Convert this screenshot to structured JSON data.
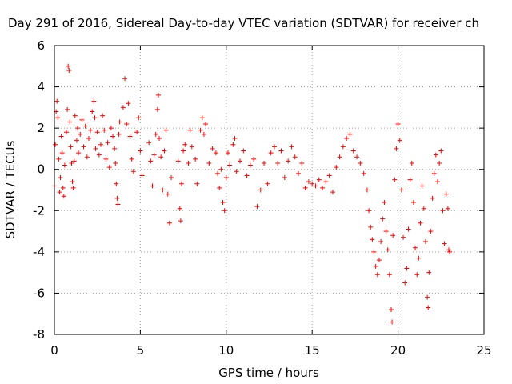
{
  "chart_data": {
    "type": "scatter",
    "title": "Day 291 of 2016, Sidereal Day-to-day VTEC variation (SDTVAR) for receiver ch",
    "xlabel": "GPS time / hours",
    "ylabel": "SDTVAR / TECUs",
    "xlim": [
      0,
      25
    ],
    "ylim": [
      -8,
      6
    ],
    "xticks": [
      "0",
      "5",
      "10",
      "15",
      "20",
      "25"
    ],
    "yticks": [
      "6",
      "4",
      "2",
      "0",
      "-2",
      "-4",
      "-6",
      "-8"
    ],
    "grid": true,
    "marker": "plus",
    "color": "#ff0000",
    "series": [
      {
        "name": "SDTVAR",
        "points": [
          [
            0.0,
            -0.8
          ],
          [
            0.05,
            1.2
          ],
          [
            0.1,
            2.8
          ],
          [
            0.15,
            3.3
          ],
          [
            0.2,
            2.5
          ],
          [
            0.25,
            0.5
          ],
          [
            0.3,
            -1.1
          ],
          [
            0.35,
            -0.4
          ],
          [
            0.4,
            1.6
          ],
          [
            0.45,
            0.8
          ],
          [
            0.5,
            -0.9
          ],
          [
            0.55,
            -1.3
          ],
          [
            0.6,
            0.2
          ],
          [
            0.7,
            1.8
          ],
          [
            0.75,
            2.9
          ],
          [
            0.8,
            5.0
          ],
          [
            0.85,
            4.8
          ],
          [
            0.9,
            2.3
          ],
          [
            0.95,
            1.1
          ],
          [
            1.0,
            0.3
          ],
          [
            1.05,
            -0.6
          ],
          [
            1.1,
            -0.9
          ],
          [
            1.15,
            0.4
          ],
          [
            1.2,
            2.6
          ],
          [
            1.3,
            1.4
          ],
          [
            1.35,
            2.0
          ],
          [
            1.4,
            0.8
          ],
          [
            1.5,
            1.7
          ],
          [
            1.6,
            2.4
          ],
          [
            1.7,
            1.1
          ],
          [
            1.8,
            2.1
          ],
          [
            1.9,
            0.6
          ],
          [
            2.0,
            1.5
          ],
          [
            2.1,
            1.9
          ],
          [
            2.2,
            2.8
          ],
          [
            2.3,
            3.3
          ],
          [
            2.35,
            2.5
          ],
          [
            2.4,
            1.0
          ],
          [
            2.5,
            1.8
          ],
          [
            2.6,
            0.7
          ],
          [
            2.7,
            1.2
          ],
          [
            2.8,
            2.6
          ],
          [
            2.9,
            1.9
          ],
          [
            3.0,
            0.5
          ],
          [
            3.1,
            1.3
          ],
          [
            3.2,
            0.1
          ],
          [
            3.3,
            2.0
          ],
          [
            3.4,
            1.6
          ],
          [
            3.5,
            1.0
          ],
          [
            3.55,
            0.3
          ],
          [
            3.6,
            -0.7
          ],
          [
            3.65,
            -1.4
          ],
          [
            3.7,
            -1.7
          ],
          [
            3.75,
            1.7
          ],
          [
            3.8,
            2.3
          ],
          [
            4.0,
            3.0
          ],
          [
            4.1,
            4.4
          ],
          [
            4.2,
            2.2
          ],
          [
            4.3,
            3.2
          ],
          [
            4.4,
            1.6
          ],
          [
            4.5,
            0.5
          ],
          [
            4.6,
            -0.1
          ],
          [
            4.8,
            1.8
          ],
          [
            4.9,
            2.5
          ],
          [
            5.0,
            0.9
          ],
          [
            5.1,
            -0.3
          ],
          [
            5.5,
            1.3
          ],
          [
            5.6,
            0.4
          ],
          [
            5.7,
            -0.8
          ],
          [
            5.8,
            0.7
          ],
          [
            5.9,
            1.7
          ],
          [
            6.0,
            2.9
          ],
          [
            6.05,
            3.6
          ],
          [
            6.1,
            1.5
          ],
          [
            6.2,
            0.6
          ],
          [
            6.3,
            -1.0
          ],
          [
            6.4,
            0.9
          ],
          [
            6.5,
            1.9
          ],
          [
            6.6,
            -1.2
          ],
          [
            6.7,
            -2.6
          ],
          [
            6.8,
            -0.4
          ],
          [
            7.2,
            0.4
          ],
          [
            7.3,
            -1.9
          ],
          [
            7.35,
            -2.5
          ],
          [
            7.4,
            -0.7
          ],
          [
            7.5,
            0.9
          ],
          [
            7.6,
            1.2
          ],
          [
            7.8,
            0.3
          ],
          [
            7.9,
            1.9
          ],
          [
            8.0,
            1.1
          ],
          [
            8.2,
            0.5
          ],
          [
            8.3,
            -0.7
          ],
          [
            8.5,
            1.9
          ],
          [
            8.6,
            2.5
          ],
          [
            8.7,
            1.7
          ],
          [
            8.8,
            2.2
          ],
          [
            9.0,
            0.3
          ],
          [
            9.2,
            1.0
          ],
          [
            9.4,
            0.8
          ],
          [
            9.5,
            -0.2
          ],
          [
            9.6,
            -0.9
          ],
          [
            9.7,
            0.0
          ],
          [
            9.8,
            -1.6
          ],
          [
            9.9,
            -2.0
          ],
          [
            10.0,
            -0.4
          ],
          [
            10.1,
            0.8
          ],
          [
            10.2,
            0.2
          ],
          [
            10.4,
            1.2
          ],
          [
            10.5,
            1.5
          ],
          [
            10.6,
            -0.1
          ],
          [
            10.8,
            0.4
          ],
          [
            11.0,
            0.9
          ],
          [
            11.2,
            -0.3
          ],
          [
            11.4,
            0.2
          ],
          [
            11.6,
            0.5
          ],
          [
            11.8,
            -1.8
          ],
          [
            12.0,
            -1.0
          ],
          [
            12.2,
            0.3
          ],
          [
            12.4,
            -0.7
          ],
          [
            12.6,
            0.8
          ],
          [
            12.8,
            1.1
          ],
          [
            13.0,
            0.3
          ],
          [
            13.2,
            0.9
          ],
          [
            13.4,
            -0.4
          ],
          [
            13.6,
            0.4
          ],
          [
            13.8,
            1.1
          ],
          [
            14.0,
            0.6
          ],
          [
            14.2,
            -0.2
          ],
          [
            14.4,
            0.3
          ],
          [
            14.6,
            -0.9
          ],
          [
            14.8,
            -0.6
          ],
          [
            15.0,
            -0.7
          ],
          [
            15.2,
            -0.8
          ],
          [
            15.4,
            -0.5
          ],
          [
            15.6,
            -0.9
          ],
          [
            15.8,
            -0.6
          ],
          [
            16.0,
            -0.3
          ],
          [
            16.2,
            -1.1
          ],
          [
            16.4,
            0.1
          ],
          [
            16.6,
            0.6
          ],
          [
            16.8,
            1.1
          ],
          [
            17.0,
            1.5
          ],
          [
            17.2,
            1.7
          ],
          [
            17.4,
            0.9
          ],
          [
            17.6,
            0.6
          ],
          [
            17.8,
            0.3
          ],
          [
            18.0,
            -0.2
          ],
          [
            18.2,
            -1.0
          ],
          [
            18.3,
            -2.0
          ],
          [
            18.4,
            -2.8
          ],
          [
            18.5,
            -3.4
          ],
          [
            18.6,
            -4.0
          ],
          [
            18.7,
            -4.7
          ],
          [
            18.8,
            -5.1
          ],
          [
            18.9,
            -4.4
          ],
          [
            19.0,
            -3.5
          ],
          [
            19.1,
            -2.4
          ],
          [
            19.2,
            -1.6
          ],
          [
            19.3,
            -3.0
          ],
          [
            19.4,
            -3.9
          ],
          [
            19.5,
            -5.1
          ],
          [
            19.6,
            -6.8
          ],
          [
            19.65,
            -7.4
          ],
          [
            19.7,
            -3.2
          ],
          [
            19.8,
            -0.5
          ],
          [
            19.9,
            1.0
          ],
          [
            20.0,
            2.2
          ],
          [
            20.1,
            1.4
          ],
          [
            20.2,
            -1.0
          ],
          [
            20.3,
            -3.3
          ],
          [
            20.4,
            -5.5
          ],
          [
            20.5,
            -4.8
          ],
          [
            20.6,
            -2.9
          ],
          [
            20.7,
            -0.5
          ],
          [
            20.8,
            0.3
          ],
          [
            20.9,
            -1.6
          ],
          [
            21.0,
            -3.8
          ],
          [
            21.1,
            -5.1
          ],
          [
            21.2,
            -4.3
          ],
          [
            21.3,
            -2.6
          ],
          [
            21.4,
            -0.8
          ],
          [
            21.5,
            -1.9
          ],
          [
            21.6,
            -3.5
          ],
          [
            21.7,
            -6.2
          ],
          [
            21.75,
            -6.7
          ],
          [
            21.8,
            -5.0
          ],
          [
            21.9,
            -3.0
          ],
          [
            22.0,
            -1.4
          ],
          [
            22.1,
            -0.2
          ],
          [
            22.2,
            0.7
          ],
          [
            22.3,
            -0.6
          ],
          [
            22.4,
            0.3
          ],
          [
            22.5,
            0.9
          ],
          [
            22.6,
            -2.0
          ],
          [
            22.7,
            -3.6
          ],
          [
            22.8,
            -1.2
          ],
          [
            22.9,
            -1.9
          ],
          [
            22.95,
            -3.9
          ],
          [
            23.0,
            -4.0
          ]
        ]
      }
    ]
  }
}
